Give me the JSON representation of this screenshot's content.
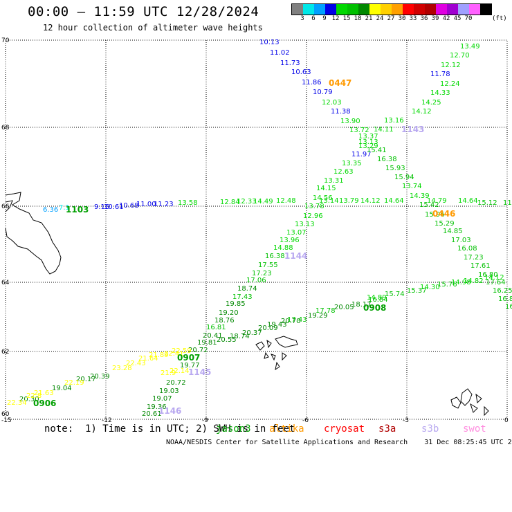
{
  "header": {
    "title": "00:00 – 11:59 UTC 12/28/2024",
    "subtitle": "12 hour collection of altimeter wave heights"
  },
  "legend": {
    "colors": [
      "#808080",
      "#00e8e8",
      "#00a0ff",
      "#0000e8",
      "#00d800",
      "#00c000",
      "#008800",
      "#ffff00",
      "#ffd000",
      "#ffa000",
      "#ff0000",
      "#d00000",
      "#b00000",
      "#e000e0",
      "#a000d0",
      "#a0a0ff",
      "#ff60ff",
      "#000000"
    ],
    "ticks": [
      "3",
      "6",
      "9",
      "12",
      "15",
      "18",
      "21",
      "24",
      "27",
      "30",
      "33",
      "36",
      "39",
      "42",
      "45",
      "70"
    ],
    "unit": "(ft)"
  },
  "axes": {
    "y_ticks": [
      "70",
      "68",
      "66",
      "64",
      "62",
      "60"
    ],
    "x_ticks": [
      "-15",
      "-12",
      "-9",
      "-6",
      "-3",
      "0"
    ]
  },
  "note": {
    "prefix": "note:  1) Time is in UTC; 2) SWH is in feet",
    "satellites": [
      {
        "name": "jason3",
        "color": "#00a000"
      },
      {
        "name": "altika",
        "color": "#ff9a00"
      },
      {
        "name": "cryosat",
        "color": "#ff0000"
      },
      {
        "name": "s3a",
        "color": "#b00000"
      },
      {
        "name": "s3b",
        "color": "#b8a8f0"
      },
      {
        "name": "swot",
        "color": "#ff90e0"
      }
    ]
  },
  "footer": "NOAA/NESDIS Center for Satellite Applications and Research    31 Dec 08:25:45 UTC 2024",
  "track_times": [
    {
      "text": "0447",
      "color": "#ff9a00"
    },
    {
      "text": "1143",
      "color": "#b8a8f0"
    },
    {
      "text": "0446",
      "color": "#ff9a00"
    },
    {
      "text": "1103",
      "color": "#00a000"
    },
    {
      "text": "1144",
      "color": "#b8a8f0"
    },
    {
      "text": "0908",
      "color": "#00a000"
    },
    {
      "text": "0907",
      "color": "#00a000"
    },
    {
      "text": "1145",
      "color": "#b8a8f0"
    },
    {
      "text": "1146",
      "color": "#b8a8f0"
    },
    {
      "text": "0906",
      "color": "#00a000"
    }
  ],
  "wave_labels": [
    {
      "v": "10.13",
      "c": "#0000e8"
    },
    {
      "v": "11.02",
      "c": "#0000e8"
    },
    {
      "v": "11.73",
      "c": "#0000e8"
    },
    {
      "v": "10.63",
      "c": "#0000e8"
    },
    {
      "v": "11.86",
      "c": "#0000e8"
    },
    {
      "v": "10.79",
      "c": "#0000e8"
    },
    {
      "v": "12.03",
      "c": "#00d800"
    },
    {
      "v": "11.38",
      "c": "#0000e8"
    },
    {
      "v": "13.90",
      "c": "#00d800"
    },
    {
      "v": "13.72",
      "c": "#00d800"
    },
    {
      "v": "13.37",
      "c": "#00d800"
    },
    {
      "v": "13.13",
      "c": "#00d800"
    },
    {
      "v": "13.29",
      "c": "#00d800"
    },
    {
      "v": "11.97",
      "c": "#0000e8"
    },
    {
      "v": "15.41",
      "c": "#00c000"
    },
    {
      "v": "13.35",
      "c": "#00d800"
    },
    {
      "v": "16.38",
      "c": "#00c000"
    },
    {
      "v": "12.63",
      "c": "#00d800"
    },
    {
      "v": "15.93",
      "c": "#00c000"
    },
    {
      "v": "13.31",
      "c": "#00d800"
    },
    {
      "v": "15.94",
      "c": "#00c000"
    },
    {
      "v": "14.15",
      "c": "#00d800"
    },
    {
      "v": "13.74",
      "c": "#00d800"
    },
    {
      "v": "14.56",
      "c": "#00d800"
    },
    {
      "v": "14.39",
      "c": "#00d800"
    },
    {
      "v": "13.78",
      "c": "#00d800"
    },
    {
      "v": "15.42",
      "c": "#00c000"
    },
    {
      "v": "13.49",
      "c": "#00d800"
    },
    {
      "v": "12.70",
      "c": "#00d800"
    },
    {
      "v": "12.12",
      "c": "#00d800"
    },
    {
      "v": "11.78",
      "c": "#0000e8"
    },
    {
      "v": "12.24",
      "c": "#00d800"
    },
    {
      "v": "14.33",
      "c": "#00d800"
    },
    {
      "v": "14.25",
      "c": "#00d800"
    },
    {
      "v": "14.12",
      "c": "#00d800"
    },
    {
      "v": "13.16",
      "c": "#00d800"
    },
    {
      "v": "14.11",
      "c": "#00d800"
    },
    {
      "v": "6.36",
      "c": "#00a0ff"
    },
    {
      "v": "7.1",
      "c": "#00e8e8"
    },
    {
      "v": "9.16",
      "c": "#0000e8"
    },
    {
      "v": "10.61",
      "c": "#0000e8"
    },
    {
      "v": "10.68",
      "c": "#0000e8"
    },
    {
      "v": "11.00",
      "c": "#0000e8"
    },
    {
      "v": "11.23",
      "c": "#0000e8"
    },
    {
      "v": "13.58",
      "c": "#00d800"
    },
    {
      "v": "12.84",
      "c": "#00d800"
    },
    {
      "v": "12.33",
      "c": "#00d800"
    },
    {
      "v": "14.49",
      "c": "#00d800"
    },
    {
      "v": "12.48",
      "c": "#00d800"
    },
    {
      "v": "13.14",
      "c": "#00d800"
    },
    {
      "v": "13.79",
      "c": "#00d800"
    },
    {
      "v": "14.12",
      "c": "#00d800"
    },
    {
      "v": "14.64",
      "c": "#00d800"
    },
    {
      "v": "14.79",
      "c": "#00d800"
    },
    {
      "v": "14.64",
      "c": "#00d800"
    },
    {
      "v": "15.12",
      "c": "#00c000"
    },
    {
      "v": "11",
      "c": "#00c000"
    },
    {
      "v": "15.96",
      "c": "#00c000"
    },
    {
      "v": "15.29",
      "c": "#00c000"
    },
    {
      "v": "14.85",
      "c": "#00c000"
    },
    {
      "v": "17.03",
      "c": "#00c000"
    },
    {
      "v": "16.08",
      "c": "#00c000"
    },
    {
      "v": "17.23",
      "c": "#00c000"
    },
    {
      "v": "17.61",
      "c": "#00c000"
    },
    {
      "v": "16.80",
      "c": "#00c000"
    },
    {
      "v": "17.64",
      "c": "#00c000"
    },
    {
      "v": "16.25",
      "c": "#00c000"
    },
    {
      "v": "16.8",
      "c": "#00c000"
    },
    {
      "v": "16",
      "c": "#00c000"
    },
    {
      "v": "12.96",
      "c": "#00d800"
    },
    {
      "v": "13.13",
      "c": "#00d800"
    },
    {
      "v": "13.07",
      "c": "#00d800"
    },
    {
      "v": "13.96",
      "c": "#00d800"
    },
    {
      "v": "14.88",
      "c": "#00d800"
    },
    {
      "v": "16.38",
      "c": "#00c000"
    },
    {
      "v": "17.55",
      "c": "#00c000"
    },
    {
      "v": "17.23",
      "c": "#00c000"
    },
    {
      "v": "17.06",
      "c": "#00c000"
    },
    {
      "v": "18.74",
      "c": "#008800"
    },
    {
      "v": "17.43",
      "c": "#00c000"
    },
    {
      "v": "19.85",
      "c": "#008800"
    },
    {
      "v": "19.20",
      "c": "#008800"
    },
    {
      "v": "18.76",
      "c": "#008800"
    },
    {
      "v": "16.81",
      "c": "#00c000"
    },
    {
      "v": "20.41",
      "c": "#008800"
    },
    {
      "v": "19.81",
      "c": "#008800"
    },
    {
      "v": "20.72",
      "c": "#008800"
    },
    {
      "v": "19.77",
      "c": "#008800"
    },
    {
      "v": "20.72",
      "c": "#008800"
    },
    {
      "v": "19.03",
      "c": "#008800"
    },
    {
      "v": "19.07",
      "c": "#008800"
    },
    {
      "v": "19.36",
      "c": "#008800"
    },
    {
      "v": "20.61",
      "c": "#008800"
    },
    {
      "v": "20.55",
      "c": "#008800"
    },
    {
      "v": "18.74",
      "c": "#008800"
    },
    {
      "v": "20.37",
      "c": "#008800"
    },
    {
      "v": "20.09",
      "c": "#008800"
    },
    {
      "v": "19.43",
      "c": "#008800"
    },
    {
      "v": "20.70",
      "c": "#008800"
    },
    {
      "v": "17.43",
      "c": "#00c000"
    },
    {
      "v": "19.29",
      "c": "#008800"
    },
    {
      "v": "17.78",
      "c": "#00c000"
    },
    {
      "v": "20.05",
      "c": "#008800"
    },
    {
      "v": "18.17",
      "c": "#008800"
    },
    {
      "v": "16.84",
      "c": "#00c000"
    },
    {
      "v": "14.89",
      "c": "#00d800"
    },
    {
      "v": "15.74",
      "c": "#00c000"
    },
    {
      "v": "15.37",
      "c": "#00c000"
    },
    {
      "v": "14.30",
      "c": "#00d800"
    },
    {
      "v": "15.76",
      "c": "#00c000"
    },
    {
      "v": "14.98",
      "c": "#00d800"
    },
    {
      "v": "14.82",
      "c": "#00d800"
    },
    {
      "v": "14.12",
      "c": "#00d800"
    },
    {
      "v": "20.17",
      "c": "#008800"
    },
    {
      "v": "19.04",
      "c": "#008800"
    },
    {
      "v": "20.39",
      "c": "#008800"
    },
    {
      "v": "20.30",
      "c": "#008800"
    },
    {
      "v": "22.34",
      "c": "#ffff00"
    },
    {
      "v": "22.8",
      "c": "#ffff00"
    },
    {
      "v": "21.63",
      "c": "#ffff00"
    },
    {
      "v": "22.19",
      "c": "#ffff00"
    },
    {
      "v": "23.28",
      "c": "#ffff00"
    },
    {
      "v": "22.43",
      "c": "#ffff00"
    },
    {
      "v": "21.64",
      "c": "#ffff00"
    },
    {
      "v": "21.89",
      "c": "#ffff00"
    },
    {
      "v": "22.41",
      "c": "#ffff00"
    },
    {
      "v": "22.59",
      "c": "#ffff00"
    },
    {
      "v": "21.9",
      "c": "#ffff00"
    },
    {
      "v": "22.14",
      "c": "#ffff00"
    }
  ]
}
